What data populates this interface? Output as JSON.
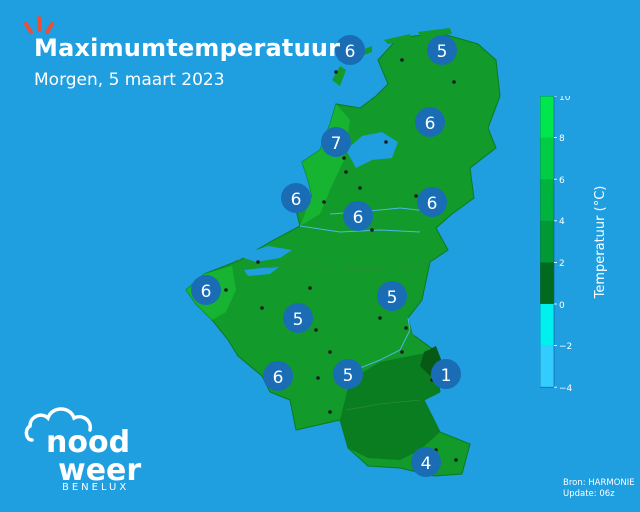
{
  "header": {
    "title": "Maximumtemperatuur",
    "subtitle": "Morgen, 5 maart 2023"
  },
  "legend": {
    "label": "Temperatuur (°C)",
    "ticks": [
      {
        "value": "10",
        "color": "#00e64d"
      },
      {
        "value": "8",
        "color": "#00cc44"
      },
      {
        "value": "6",
        "color": "#00b33c"
      },
      {
        "value": "4",
        "color": "#009933"
      },
      {
        "value": "2",
        "color": "#006b1f"
      },
      {
        "value": "0",
        "color": "#00f0f0"
      },
      {
        "value": "−2",
        "color": "#33ccff"
      },
      {
        "value": "−4",
        "color": ""
      }
    ]
  },
  "markers": [
    {
      "value": "6"
    },
    {
      "value": "5"
    },
    {
      "value": "6"
    },
    {
      "value": "7"
    },
    {
      "value": "6"
    },
    {
      "value": "6"
    },
    {
      "value": "6"
    },
    {
      "value": "6"
    },
    {
      "value": "5"
    },
    {
      "value": "5"
    },
    {
      "value": "6"
    },
    {
      "value": "5"
    },
    {
      "value": "1"
    },
    {
      "value": "4"
    }
  ],
  "logo": {
    "line1": "nood",
    "line2": "weer",
    "tagline": "BENELUX"
  },
  "source": {
    "line1": "Bron: HARMONIE",
    "line2": "Update: 06z"
  },
  "colors": {
    "sea": "#1f9ee0",
    "land": "#129a2a",
    "land_warm": "#18b832",
    "land_cool": "#0a7a20",
    "marker": "#1a6db5"
  }
}
